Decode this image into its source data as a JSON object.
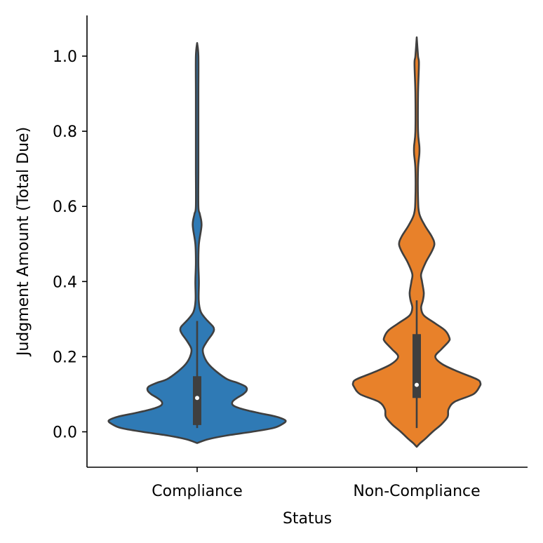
{
  "chart_data": {
    "type": "violin",
    "title": "",
    "xlabel": "Status",
    "ylabel": "Judgment Amount (Total Due)",
    "ylim": [
      -0.095,
      1.11
    ],
    "yticks": [
      "0.0",
      "0.2",
      "0.4",
      "0.6",
      "0.8",
      "1.0"
    ],
    "categories": [
      "Compliance",
      "Non-Compliance"
    ],
    "grid": false,
    "series": [
      {
        "category": "Compliance",
        "color": "#2f7ab5",
        "min": 0.01,
        "q1": 0.018,
        "median": 0.09,
        "q3": 0.148,
        "whisker_high": 0.295,
        "range": [
          -0.03,
          1.035
        ],
        "density_profile": [
          [
            -0.03,
            0.0
          ],
          [
            -0.02,
            0.12
          ],
          [
            -0.01,
            0.33
          ],
          [
            0.0,
            0.62
          ],
          [
            0.01,
            0.86
          ],
          [
            0.02,
            0.96
          ],
          [
            0.03,
            1.0
          ],
          [
            0.04,
            0.9
          ],
          [
            0.05,
            0.7
          ],
          [
            0.06,
            0.52
          ],
          [
            0.07,
            0.41
          ],
          [
            0.08,
            0.4
          ],
          [
            0.09,
            0.45
          ],
          [
            0.1,
            0.52
          ],
          [
            0.11,
            0.56
          ],
          [
            0.12,
            0.55
          ],
          [
            0.13,
            0.46
          ],
          [
            0.14,
            0.34
          ],
          [
            0.16,
            0.22
          ],
          [
            0.18,
            0.13
          ],
          [
            0.2,
            0.08
          ],
          [
            0.22,
            0.065
          ],
          [
            0.24,
            0.11
          ],
          [
            0.26,
            0.17
          ],
          [
            0.27,
            0.19
          ],
          [
            0.28,
            0.18
          ],
          [
            0.3,
            0.1
          ],
          [
            0.32,
            0.04
          ],
          [
            0.35,
            0.018
          ],
          [
            0.4,
            0.02
          ],
          [
            0.45,
            0.01
          ],
          [
            0.5,
            0.02
          ],
          [
            0.55,
            0.05
          ],
          [
            0.58,
            0.03
          ],
          [
            0.6,
            0.01
          ],
          [
            0.7,
            0.009
          ],
          [
            0.8,
            0.008
          ],
          [
            0.9,
            0.008
          ],
          [
            1.0,
            0.008
          ],
          [
            1.035,
            0.0
          ]
        ]
      },
      {
        "category": "Non-Compliance",
        "color": "#e8812a",
        "min": 0.01,
        "q1": 0.09,
        "median": 0.125,
        "q3": 0.26,
        "whisker_high": 0.35,
        "range": [
          -0.04,
          1.05
        ],
        "density_profile": [
          [
            -0.04,
            0.0
          ],
          [
            -0.03,
            0.04
          ],
          [
            -0.02,
            0.09
          ],
          [
            0.0,
            0.18
          ],
          [
            0.02,
            0.28
          ],
          [
            0.04,
            0.35
          ],
          [
            0.06,
            0.36
          ],
          [
            0.08,
            0.43
          ],
          [
            0.1,
            0.64
          ],
          [
            0.12,
            0.71
          ],
          [
            0.13,
            0.72
          ],
          [
            0.14,
            0.68
          ],
          [
            0.16,
            0.47
          ],
          [
            0.18,
            0.29
          ],
          [
            0.2,
            0.21
          ],
          [
            0.22,
            0.28
          ],
          [
            0.24,
            0.36
          ],
          [
            0.25,
            0.37
          ],
          [
            0.27,
            0.32
          ],
          [
            0.29,
            0.2
          ],
          [
            0.31,
            0.08
          ],
          [
            0.33,
            0.05
          ],
          [
            0.35,
            0.07
          ],
          [
            0.37,
            0.08
          ],
          [
            0.4,
            0.06
          ],
          [
            0.42,
            0.05
          ],
          [
            0.45,
            0.1
          ],
          [
            0.48,
            0.17
          ],
          [
            0.5,
            0.2
          ],
          [
            0.52,
            0.17
          ],
          [
            0.55,
            0.09
          ],
          [
            0.58,
            0.03
          ],
          [
            0.62,
            0.015
          ],
          [
            0.7,
            0.015
          ],
          [
            0.74,
            0.03
          ],
          [
            0.76,
            0.03
          ],
          [
            0.8,
            0.015
          ],
          [
            0.9,
            0.015
          ],
          [
            0.98,
            0.025
          ],
          [
            1.0,
            0.015
          ],
          [
            1.05,
            0.0
          ]
        ]
      }
    ]
  }
}
